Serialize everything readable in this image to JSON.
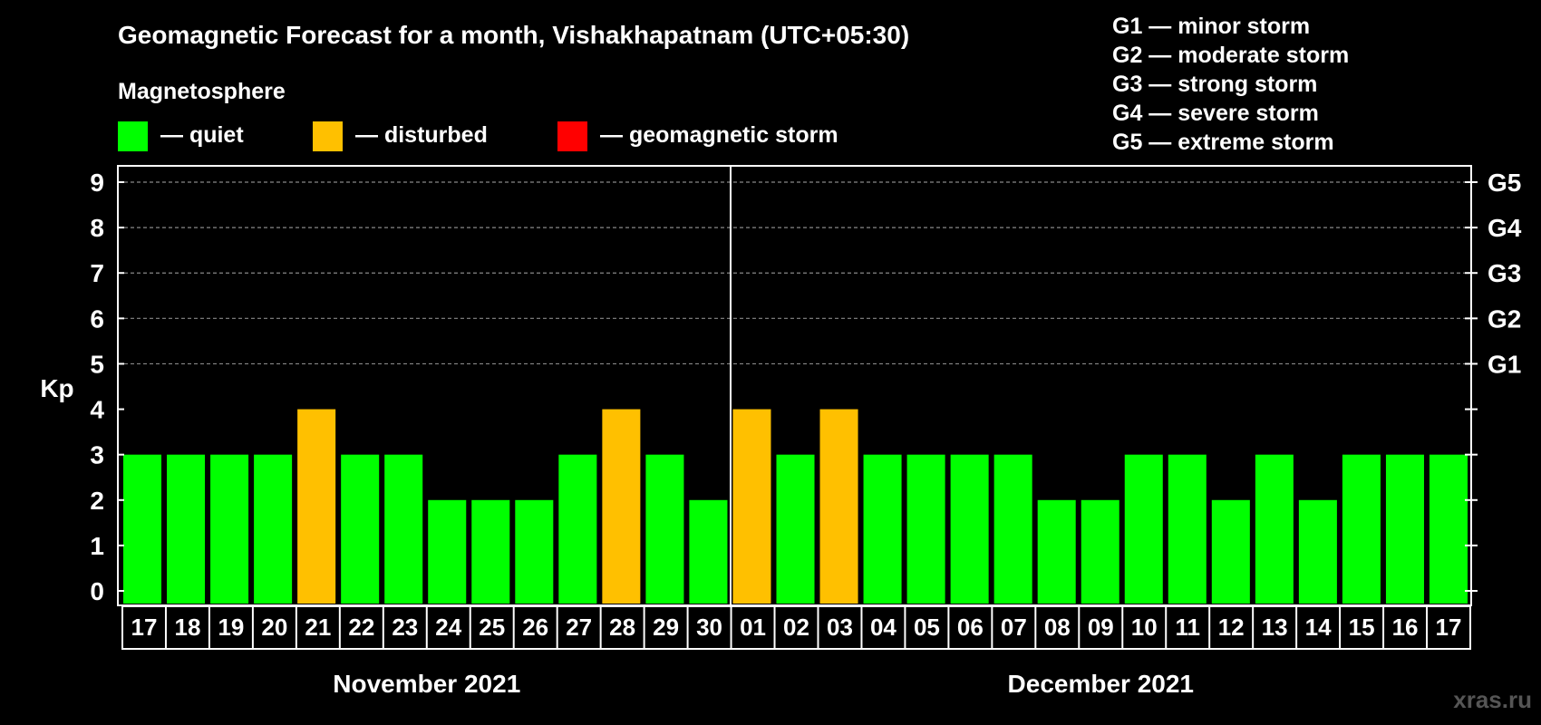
{
  "chart_data": {
    "type": "bar",
    "title": "Geomagnetic Forecast for a month, Vishakhapatnam (UTC+05:30)",
    "legend_title": "Magnetosphere",
    "legend": [
      {
        "label": "— quiet",
        "color": "#00ff00"
      },
      {
        "label": "— disturbed",
        "color": "#ffc000"
      },
      {
        "label": "— geomagnetic storm",
        "color": "#ff0000"
      }
    ],
    "storm_levels": [
      {
        "label": "G1 — minor storm",
        "kp": 5,
        "tick": "G1"
      },
      {
        "label": "G2 — moderate storm",
        "kp": 6,
        "tick": "G2"
      },
      {
        "label": "G3 — strong storm",
        "kp": 7,
        "tick": "G3"
      },
      {
        "label": "G4 — severe storm",
        "kp": 8,
        "tick": "G4"
      },
      {
        "label": "G5 — extreme storm",
        "kp": 9,
        "tick": "G5"
      }
    ],
    "ylabel": "Kp",
    "ylim": [
      0,
      9
    ],
    "yticks": [
      "0",
      "1",
      "2",
      "3",
      "4",
      "5",
      "6",
      "7",
      "8",
      "9"
    ],
    "categories": [
      "17",
      "18",
      "19",
      "20",
      "21",
      "22",
      "23",
      "24",
      "25",
      "26",
      "27",
      "28",
      "29",
      "30",
      "01",
      "02",
      "03",
      "04",
      "05",
      "06",
      "07",
      "08",
      "09",
      "10",
      "11",
      "12",
      "13",
      "14",
      "15",
      "16",
      "17"
    ],
    "values": [
      3,
      3,
      3,
      3,
      4,
      3,
      3,
      2,
      2,
      2,
      3,
      4,
      3,
      2,
      4,
      3,
      4,
      3,
      3,
      3,
      3,
      2,
      2,
      3,
      3,
      2,
      3,
      2,
      3,
      3,
      3
    ],
    "status": [
      "quiet",
      "quiet",
      "quiet",
      "quiet",
      "disturbed",
      "quiet",
      "quiet",
      "quiet",
      "quiet",
      "quiet",
      "quiet",
      "disturbed",
      "quiet",
      "quiet",
      "disturbed",
      "quiet",
      "disturbed",
      "quiet",
      "quiet",
      "quiet",
      "quiet",
      "quiet",
      "quiet",
      "quiet",
      "quiet",
      "quiet",
      "quiet",
      "quiet",
      "quiet",
      "quiet",
      "quiet"
    ],
    "status_colors": {
      "quiet": "#00ff00",
      "disturbed": "#ffc000",
      "storm": "#ff0000"
    },
    "months": [
      {
        "label": "November 2021",
        "start": 0,
        "end": 13
      },
      {
        "label": "December 2021",
        "start": 14,
        "end": 30
      }
    ],
    "grid": true
  },
  "watermark": "xras.ru"
}
